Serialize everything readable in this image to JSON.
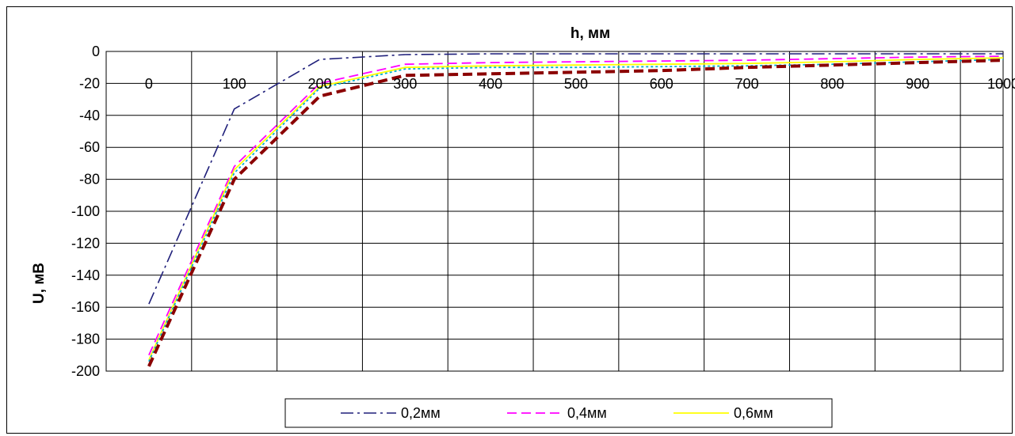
{
  "chart_data": {
    "type": "line",
    "title": "",
    "xlabel": "h, мм",
    "ylabel": "U, мВ",
    "x": [
      0,
      100,
      200,
      300,
      400,
      500,
      600,
      700,
      800,
      900,
      1000
    ],
    "xlim": [
      -50,
      1000
    ],
    "ylim": [
      -200,
      0
    ],
    "x_ticks": [
      "0",
      "100",
      "200",
      "300",
      "400",
      "500",
      "600",
      "700",
      "800",
      "900",
      "1000"
    ],
    "y_ticks": [
      "0",
      "-20",
      "-40",
      "-60",
      "-80",
      "-100",
      "-120",
      "-140",
      "-160",
      "-180",
      "-200"
    ],
    "grid": true,
    "legend_position": "bottom",
    "series": [
      {
        "name": "0,2мм",
        "color": "#1f1f7a",
        "dash": "dashdot",
        "values": [
          -158,
          -36,
          -5,
          -2,
          -1.5,
          -1.5,
          -1.5,
          -1.5,
          -1.5,
          -1.5,
          -1.5
        ]
      },
      {
        "name": "0,4мм",
        "color": "#ff00ff",
        "dash": "dash",
        "values": [
          -190,
          -72,
          -20,
          -8,
          -7,
          -6.5,
          -6,
          -5.5,
          -4.5,
          -3.5,
          -3
        ]
      },
      {
        "name": "0,6мм",
        "color": "#ffff00",
        "dash": "solid",
        "values": [
          -193,
          -74,
          -22,
          -10,
          -9,
          -8.5,
          -8,
          -7.5,
          -6.5,
          -5,
          -4
        ]
      },
      {
        "color": "#00b0d0",
        "dash": "dot",
        "values": [
          -194,
          -76,
          -23,
          -11,
          -10,
          -10,
          -9.5,
          -9,
          -8,
          -6.5,
          -5
        ]
      },
      {
        "color": "#8b0000",
        "dash": "dash-thick",
        "values": [
          -197,
          -80,
          -28,
          -15,
          -14,
          -13,
          -12,
          -10,
          -8.5,
          -7,
          -5.5
        ]
      }
    ]
  }
}
